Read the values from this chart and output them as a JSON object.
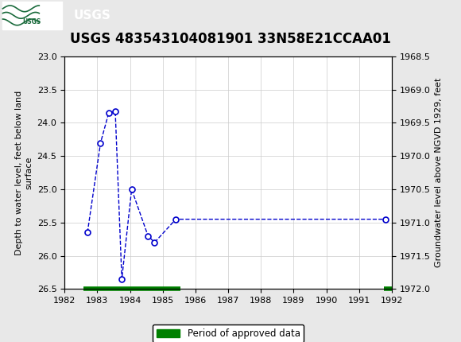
{
  "title": "USGS 483543104081901 33N58E21CCAA01",
  "ylabel_left": "Depth to water level, feet below land\nsurface",
  "ylabel_right": "Groundwater level above NGVD 1929, feet",
  "xlim": [
    1982,
    1992
  ],
  "ylim_left": [
    23.0,
    26.5
  ],
  "ylim_right": [
    1968.5,
    1972.0
  ],
  "xticks": [
    1982,
    1983,
    1984,
    1985,
    1986,
    1987,
    1988,
    1989,
    1990,
    1991,
    1992
  ],
  "yticks_left": [
    23.0,
    23.5,
    24.0,
    24.5,
    25.0,
    25.5,
    26.0,
    26.5
  ],
  "yticks_right": [
    1968.5,
    1969.0,
    1969.5,
    1970.0,
    1970.5,
    1971.0,
    1971.5,
    1972.0
  ],
  "data_x": [
    1982.7,
    1983.1,
    1983.35,
    1983.55,
    1983.75,
    1984.05,
    1984.55,
    1984.75,
    1985.4,
    1991.8
  ],
  "data_y": [
    25.65,
    24.3,
    23.85,
    23.83,
    26.35,
    25.0,
    25.7,
    25.8,
    25.45,
    25.45
  ],
  "line_color": "#0000cc",
  "marker_color": "#0000cc",
  "marker_face": "white",
  "marker_size": 5,
  "line_style": "--",
  "line_width": 1.0,
  "green_bar_color": "#008000",
  "green_bar_segments": [
    {
      "x_start": 1982.58,
      "x_end": 1985.55,
      "y": 26.5
    },
    {
      "x_start": 1991.75,
      "x_end": 1992.0,
      "y": 26.5
    }
  ],
  "green_bar_thickness": 4,
  "background_color": "#e8e8e8",
  "plot_bg": "#ffffff",
  "header_color": "#1a6b3c",
  "title_fontsize": 12,
  "axis_label_fontsize": 8,
  "tick_fontsize": 8,
  "legend_label": "Period of approved data",
  "legend_color": "#008000",
  "grid_color": "#cccccc",
  "grid_linewidth": 0.5
}
